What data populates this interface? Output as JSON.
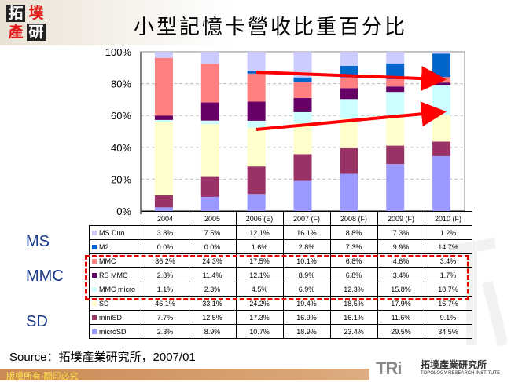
{
  "header": {
    "logo_text": [
      "拓",
      "墣",
      "產",
      "研"
    ],
    "title": "小型記憶卡營收比重百分比"
  },
  "side_labels": {
    "ms": "MS",
    "mmc": "MMC",
    "sd": "SD"
  },
  "source": "Source：拓墣產業研究所，2007/01",
  "footer": {
    "copyright": "版權所有‧翻印必究",
    "brand_mark": "TRi",
    "brand_cn": "拓墣產業研究所",
    "brand_en": "TOPOLOGY RESEARCH INSTITUTE"
  },
  "chart_data": {
    "type": "bar",
    "stacked": true,
    "percent_stacked": true,
    "title": "",
    "categories": [
      "2004",
      "2005",
      "2006 (E)",
      "2007 (F)",
      "2008 (F)",
      "2009 (F)",
      "2010 (F)"
    ],
    "y_ticks": [
      "0%",
      "20%",
      "40%",
      "60%",
      "80%",
      "100%"
    ],
    "ylim": [
      0,
      100
    ],
    "grid": "horizontal dashed",
    "legend": "table below chart",
    "series": [
      {
        "name": "MS Duo",
        "color": "#CCCCFF",
        "values": [
          "3.8%",
          "7.5%",
          "12.1%",
          "16.1%",
          "8.8%",
          "7.3%",
          "1.2%"
        ]
      },
      {
        "name": "M2",
        "color": "#0066CC",
        "values": [
          "0.0%",
          "0.0%",
          "1.6%",
          "2.8%",
          "7.3%",
          "9.9%",
          "14.7%"
        ]
      },
      {
        "name": "MMC",
        "color": "#FF8080",
        "values": [
          "36.2%",
          "24.3%",
          "17.5%",
          "10.1%",
          "6.8%",
          "4.6%",
          "3.4%"
        ]
      },
      {
        "name": "RS MMC",
        "color": "#660066",
        "values": [
          "2.8%",
          "11.4%",
          "12.1%",
          "8.9%",
          "6.8%",
          "3.4%",
          "1.7%"
        ]
      },
      {
        "name": "MMC micro",
        "color": "#CCFFFF",
        "values": [
          "1.1%",
          "2.3%",
          "4.5%",
          "6.9%",
          "12.3%",
          "15.8%",
          "18.7%"
        ]
      },
      {
        "name": "SD",
        "color": "#FFFFCC",
        "values": [
          "46.1%",
          "33.1%",
          "24.2%",
          "19.4%",
          "18.5%",
          "17.9%",
          "16.7%"
        ]
      },
      {
        "name": "miniSD",
        "color": "#993366",
        "values": [
          "7.7%",
          "12.5%",
          "17.3%",
          "16.9%",
          "16.1%",
          "11.6%",
          "9.1%"
        ]
      },
      {
        "name": "microSD",
        "color": "#9999FF",
        "values": [
          "2.3%",
          "8.9%",
          "10.7%",
          "18.9%",
          "23.4%",
          "29.5%",
          "34.5%"
        ]
      }
    ],
    "annotations": [
      {
        "type": "arrow",
        "color": "#FF0000",
        "from": "2006 (E)",
        "to": "2010 (F)",
        "direction": "decreasing",
        "meaning": "MS/MMC share trend"
      },
      {
        "type": "arrow",
        "color": "#FF0000",
        "from": "2006 (E)",
        "to": "2010 (F)",
        "direction": "increasing",
        "meaning": "SD share trend"
      },
      {
        "type": "dashed-box",
        "color": "#E60000",
        "rows": [
          "MMC",
          "RS MMC",
          "MMC micro"
        ]
      }
    ]
  }
}
